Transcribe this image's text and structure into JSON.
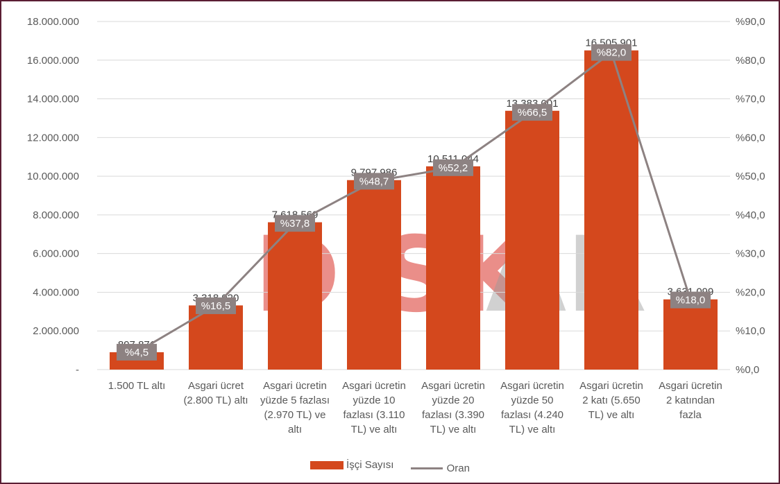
{
  "watermark": {
    "left": "DİSK",
    "right": "AR",
    "color_left": "#d9332a",
    "color_right": "#9a9a9a"
  },
  "colors": {
    "bar": "#d4481d",
    "line": "#8d8282",
    "label_box": "#8d8282",
    "border": "#5a1e33"
  },
  "chart_data": {
    "type": "bar",
    "categories": [
      [
        "1.500 TL altı"
      ],
      [
        "Asgari ücret",
        "(2.800 TL) altı"
      ],
      [
        "Asgari ücretin",
        "yüzde 5 fazlası",
        "(2.970 TL) ve",
        "altı"
      ],
      [
        "Asgari ücretin",
        "yüzde 10",
        "fazlası (3.110",
        "TL) ve altı"
      ],
      [
        "Asgari ücretin",
        "yüzde 20",
        "fazlası (3.390",
        "TL) ve altı"
      ],
      [
        "Asgari ücretin",
        "yüzde 50",
        "fazlası (4.240",
        "TL) ve altı"
      ],
      [
        "Asgari ücretin",
        "2 katı (5.650",
        "TL) ve altı"
      ],
      [
        "Asgari ücretin",
        "2 katından",
        "fazla"
      ]
    ],
    "series": [
      {
        "name": "İşçi Sayısı",
        "type": "bar",
        "axis": "left",
        "values": [
          897871,
          3318920,
          7618569,
          9797986,
          10511044,
          13383001,
          16505901,
          3631099
        ],
        "labels": [
          "897.871",
          "3.318.920",
          "7.618.569",
          "9.797.986",
          "10.511.044",
          "13.383.001",
          "16.505.901",
          "3.631.099"
        ]
      },
      {
        "name": "Oran",
        "type": "line",
        "axis": "right",
        "values": [
          4.5,
          16.5,
          37.8,
          48.7,
          52.2,
          66.5,
          82.0,
          18.0
        ],
        "labels": [
          "%4,5",
          "%16,5",
          "%37,8",
          "%48,7",
          "%52,2",
          "%66,5",
          "%82,0",
          "%18,0"
        ]
      }
    ],
    "y_left": {
      "ylim": [
        0,
        18000000
      ],
      "ticks": [
        "-",
        "2.000.000",
        "4.000.000",
        "6.000.000",
        "8.000.000",
        "10.000.000",
        "12.000.000",
        "14.000.000",
        "16.000.000",
        "18.000.000"
      ]
    },
    "y_right": {
      "ylim": [
        0,
        90
      ],
      "ticks": [
        "%0,0",
        "%10,0",
        "%20,0",
        "%30,0",
        "%40,0",
        "%50,0",
        "%60,0",
        "%70,0",
        "%80,0",
        "%90,0"
      ]
    },
    "grid": true,
    "legend": "bottom"
  }
}
